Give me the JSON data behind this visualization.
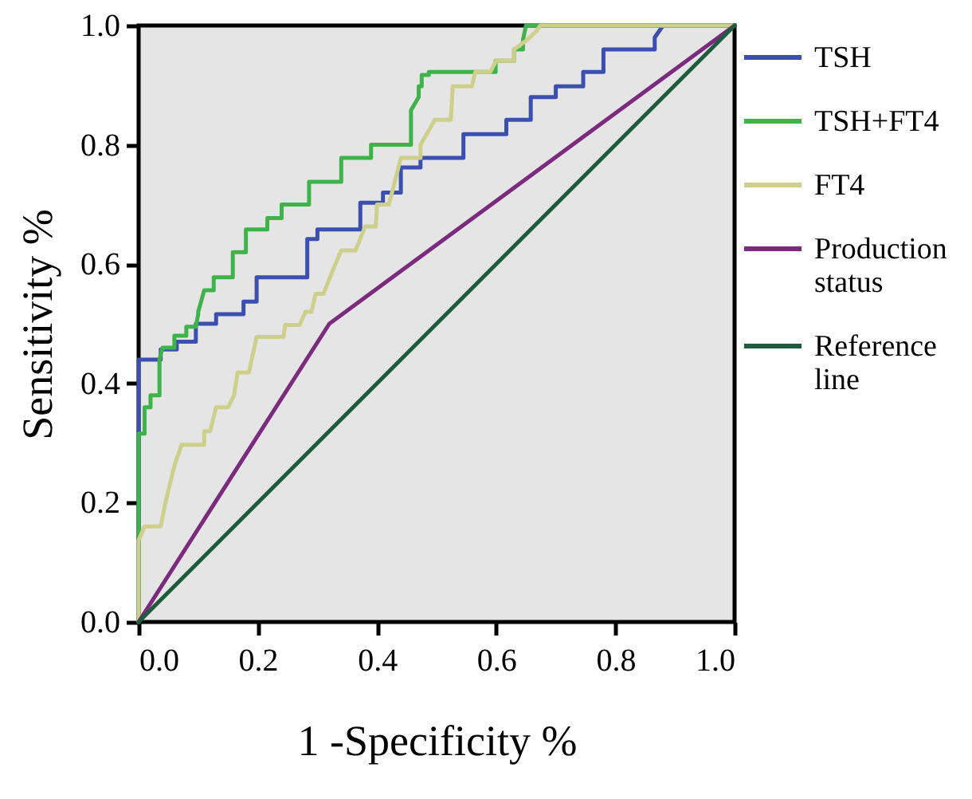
{
  "chart_data": {
    "type": "line",
    "xlabel": "1 -Specificity %",
    "ylabel": "Sensitivity %",
    "xlim": [
      0,
      1
    ],
    "ylim": [
      0,
      1
    ],
    "xticks": [
      {
        "value": 0,
        "label": "0.0"
      },
      0.2,
      0.4,
      0.6,
      0.8,
      {
        "value": 1,
        "label": "1.0"
      }
    ],
    "yticks": [
      {
        "value": 0,
        "label": "0.0"
      },
      0.2,
      0.4,
      0.6,
      0.8,
      {
        "value": 1,
        "label": "1.0"
      }
    ],
    "grid": false,
    "legend": "right",
    "marker": "none",
    "line_style": "solid",
    "series": [
      {
        "name": "TSH",
        "color": "#3a4fb0",
        "x": [
          0,
          0,
          0.037,
          0.037,
          0.064,
          0.064,
          0.096,
          0.096,
          0.13,
          0.13,
          0.176,
          0.176,
          0.19,
          0.198,
          0.198,
          0.283,
          0.283,
          0.3,
          0.3,
          0.372,
          0.372,
          0.38,
          0.41,
          0.41,
          0.44,
          0.44,
          0.473,
          0.473,
          0.545,
          0.545,
          0.617,
          0.617,
          0.658,
          0.658,
          0.7,
          0.7,
          0.746,
          0.746,
          0.78,
          0.78,
          0.866,
          0.866,
          0.88,
          1
        ],
        "values": [
          0,
          0.44,
          0.44,
          0.457,
          0.457,
          0.47,
          0.47,
          0.5,
          0.5,
          0.516,
          0.516,
          0.537,
          0.537,
          0.537,
          0.578,
          0.578,
          0.642,
          0.642,
          0.658,
          0.658,
          0.703,
          0.703,
          0.703,
          0.72,
          0.72,
          0.762,
          0.762,
          0.778,
          0.778,
          0.818,
          0.818,
          0.842,
          0.842,
          0.88,
          0.88,
          0.898,
          0.898,
          0.922,
          0.922,
          0.96,
          0.96,
          0.98,
          1,
          1
        ]
      },
      {
        "name": "TSH+FT4",
        "color": "#3db34a",
        "x": [
          0,
          0,
          0.01,
          0.01,
          0.02,
          0.02,
          0.035,
          0.035,
          0.04,
          0.06,
          0.06,
          0.08,
          0.08,
          0.096,
          0.1,
          0.1,
          0.11,
          0.126,
          0.126,
          0.15,
          0.158,
          0.158,
          0.18,
          0.18,
          0.216,
          0.216,
          0.24,
          0.24,
          0.286,
          0.286,
          0.34,
          0.34,
          0.39,
          0.39,
          0.457,
          0.457,
          0.47,
          0.47,
          0.475,
          0.475,
          0.487,
          0.487,
          0.599,
          0.599,
          0.63,
          0.63,
          0.645,
          0.645,
          0.65,
          1
        ],
        "values": [
          0,
          0.316,
          0.316,
          0.36,
          0.36,
          0.38,
          0.38,
          0.44,
          0.46,
          0.46,
          0.48,
          0.48,
          0.495,
          0.495,
          0.516,
          0.52,
          0.556,
          0.556,
          0.578,
          0.578,
          0.578,
          0.62,
          0.62,
          0.658,
          0.658,
          0.677,
          0.677,
          0.7,
          0.7,
          0.738,
          0.738,
          0.778,
          0.778,
          0.8,
          0.8,
          0.858,
          0.88,
          0.898,
          0.898,
          0.917,
          0.917,
          0.922,
          0.922,
          0.941,
          0.941,
          0.96,
          0.96,
          0.976,
          1,
          1
        ]
      },
      {
        "name": "FT4",
        "color": "#cfcf8c",
        "x": [
          0,
          0,
          0.01,
          0.037,
          0.045,
          0.06,
          0.072,
          0.11,
          0.11,
          0.12,
          0.13,
          0.15,
          0.16,
          0.166,
          0.185,
          0.198,
          0.243,
          0.246,
          0.27,
          0.28,
          0.29,
          0.297,
          0.31,
          0.326,
          0.34,
          0.364,
          0.38,
          0.398,
          0.4,
          0.42,
          0.44,
          0.447,
          0.473,
          0.473,
          0.497,
          0.524,
          0.527,
          0.559,
          0.565,
          0.59,
          0.6,
          0.63,
          0.63,
          0.652,
          0.667,
          0.674,
          1
        ],
        "values": [
          0,
          0.137,
          0.16,
          0.16,
          0.2,
          0.262,
          0.297,
          0.297,
          0.32,
          0.32,
          0.36,
          0.36,
          0.38,
          0.418,
          0.418,
          0.478,
          0.478,
          0.498,
          0.498,
          0.52,
          0.52,
          0.55,
          0.55,
          0.59,
          0.623,
          0.623,
          0.663,
          0.663,
          0.7,
          0.7,
          0.778,
          0.778,
          0.778,
          0.8,
          0.842,
          0.842,
          0.898,
          0.898,
          0.922,
          0.922,
          0.941,
          0.941,
          0.96,
          0.976,
          0.99,
          1,
          1
        ]
      },
      {
        "name": "Production status",
        "color": "#7b2a7e",
        "x": [
          0,
          0.32,
          1
        ],
        "values": [
          0,
          0.5,
          1
        ]
      },
      {
        "name": "Reference line",
        "color": "#1e5a3c",
        "x": [
          0,
          1
        ],
        "values": [
          0,
          1
        ]
      }
    ]
  }
}
